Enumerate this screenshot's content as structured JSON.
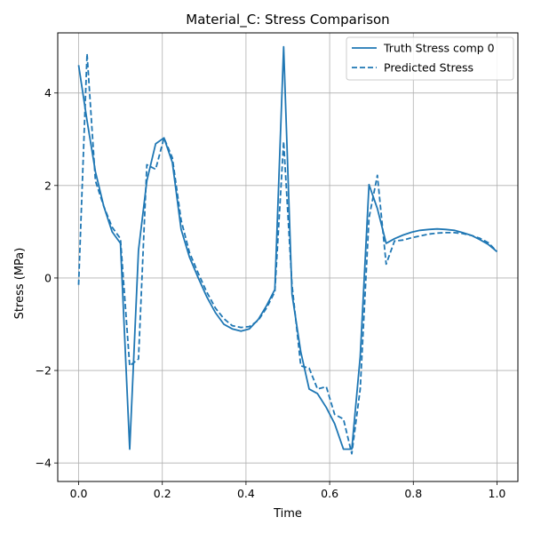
{
  "chart_data": {
    "type": "line",
    "title": "Material_C: Stress Comparison",
    "xlabel": "Time",
    "ylabel": "Stress (MPa)",
    "xlim": [
      -0.05,
      1.05
    ],
    "ylim": [
      -4.4,
      5.3
    ],
    "xticks": [
      0.0,
      0.2,
      0.4,
      0.6,
      0.8,
      1.0
    ],
    "xtick_labels": [
      "0.0",
      "0.2",
      "0.4",
      "0.6",
      "0.8",
      "1.0"
    ],
    "yticks": [
      -4,
      -2,
      0,
      2,
      4
    ],
    "ytick_labels": [
      "−4",
      "−2",
      "0",
      "2",
      "4"
    ],
    "grid": true,
    "legend": "top-right",
    "color": "#1f77b4",
    "series": [
      {
        "name": "Truth Stress comp 0",
        "style": "solid",
        "x": [
          0.0,
          0.02,
          0.04,
          0.06,
          0.08,
          0.1,
          0.122,
          0.143,
          0.163,
          0.184,
          0.204,
          0.224,
          0.245,
          0.265,
          0.286,
          0.306,
          0.327,
          0.347,
          0.367,
          0.388,
          0.408,
          0.429,
          0.449,
          0.469,
          0.49,
          0.51,
          0.531,
          0.551,
          0.571,
          0.592,
          0.612,
          0.633,
          0.653,
          0.673,
          0.694,
          0.714,
          0.735,
          0.755,
          0.776,
          0.796,
          0.816,
          0.837,
          0.857,
          0.878,
          0.898,
          0.918,
          0.939,
          0.959,
          0.98,
          1.0
        ],
        "y": [
          4.6,
          3.4,
          2.3,
          1.55,
          1.0,
          0.75,
          -3.7,
          0.6,
          2.1,
          2.9,
          3.03,
          2.5,
          1.05,
          0.45,
          0.0,
          -0.4,
          -0.75,
          -1.0,
          -1.1,
          -1.15,
          -1.1,
          -0.9,
          -0.6,
          -0.25,
          5.0,
          -0.35,
          -1.6,
          -2.4,
          -2.5,
          -2.8,
          -3.15,
          -3.7,
          -3.7,
          -1.7,
          2.02,
          1.5,
          0.75,
          0.85,
          0.93,
          0.99,
          1.03,
          1.05,
          1.06,
          1.05,
          1.03,
          0.98,
          0.92,
          0.83,
          0.72,
          0.57
        ]
      },
      {
        "name": "Predicted Stress",
        "style": "dashed",
        "x": [
          0.0,
          0.02,
          0.04,
          0.06,
          0.08,
          0.1,
          0.122,
          0.143,
          0.163,
          0.184,
          0.204,
          0.224,
          0.245,
          0.265,
          0.286,
          0.306,
          0.327,
          0.347,
          0.367,
          0.388,
          0.408,
          0.429,
          0.449,
          0.469,
          0.49,
          0.51,
          0.531,
          0.551,
          0.571,
          0.592,
          0.612,
          0.633,
          0.653,
          0.673,
          0.694,
          0.714,
          0.735,
          0.755,
          0.776,
          0.796,
          0.816,
          0.837,
          0.857,
          0.878,
          0.898,
          0.918,
          0.939,
          0.959,
          0.98,
          1.0
        ],
        "y": [
          -0.15,
          4.85,
          2.1,
          1.55,
          1.1,
          0.85,
          -1.9,
          -1.75,
          2.45,
          2.35,
          3.03,
          2.6,
          1.25,
          0.55,
          0.1,
          -0.3,
          -0.65,
          -0.88,
          -1.03,
          -1.07,
          -1.05,
          -0.92,
          -0.65,
          -0.3,
          2.95,
          -0.15,
          -1.9,
          -1.95,
          -2.4,
          -2.35,
          -2.95,
          -3.05,
          -3.8,
          -2.4,
          1.3,
          2.22,
          0.3,
          0.8,
          0.82,
          0.87,
          0.91,
          0.95,
          0.97,
          0.98,
          0.98,
          0.96,
          0.92,
          0.86,
          0.76,
          0.57
        ]
      }
    ]
  }
}
